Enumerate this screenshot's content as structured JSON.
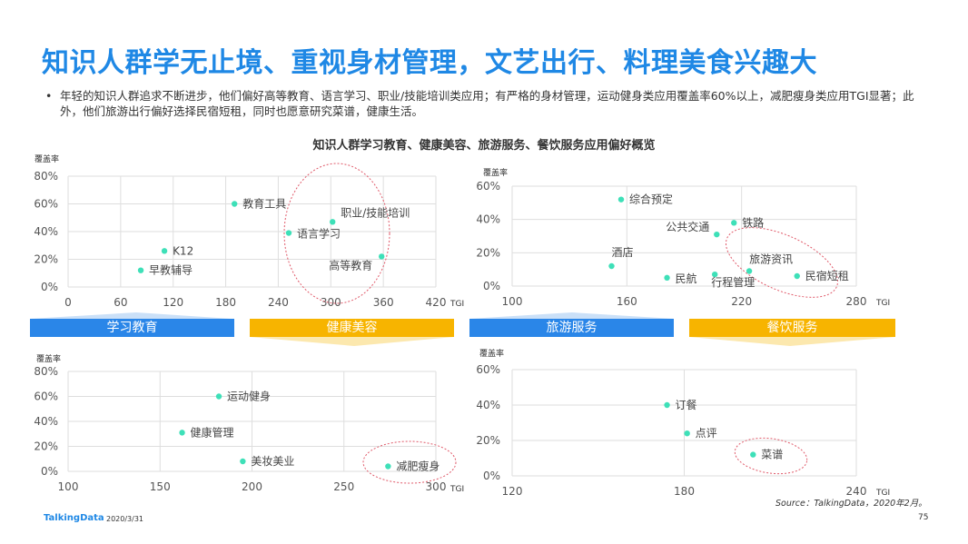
{
  "header": {
    "title": "知识人群学无止境、重视身材管理，文艺出行、料理美食兴趣大",
    "bullet_symbol": "•",
    "bullet": "年轻的知识人群追求不断进步，他们偏好高等教育、语言学习、职业/技能培训类应用；有严格的身材管理，运动健身类应用覆盖率60%以上，减肥瘦身类应用TGI显著；此外，他们旅游出行偏好选择民宿短租，同时也愿意研究菜谱，健康生活。"
  },
  "chart_title": "知识人群学习教育、健康美容、旅游服务、餐饮服务应用偏好概览",
  "bands": [
    "学习教育",
    "健康美容",
    "旅游服务",
    "餐饮服务"
  ],
  "colors": {
    "point": "#3ee0b8",
    "grid": "#dedede",
    "ellipse": "#e05a6a",
    "blue_band": "#2a86e8",
    "orange_band": "#f7b400"
  },
  "chart_data": [
    {
      "type": "scatter",
      "ylabel": "覆盖率",
      "xlabel": "TGI",
      "xlim": [
        0,
        420
      ],
      "ylim": [
        0,
        80
      ],
      "x_ticks": [
        0,
        60,
        120,
        180,
        240,
        300,
        360,
        420
      ],
      "y_ticks": [
        0,
        20,
        40,
        60,
        80
      ],
      "y_tick_labels": [
        "0%",
        "20%",
        "40%",
        "60%",
        "80%"
      ],
      "points": [
        {
          "label": "教育工具",
          "x": 190,
          "y": 60
        },
        {
          "label": "职业/技能培训",
          "x": 302,
          "y": 47
        },
        {
          "label": "语言学习",
          "x": 252,
          "y": 39
        },
        {
          "label": "K12",
          "x": 110,
          "y": 26
        },
        {
          "label": "高等教育",
          "x": 358,
          "y": 22
        },
        {
          "label": "早教辅导",
          "x": 83,
          "y": 12
        }
      ]
    },
    {
      "type": "scatter",
      "ylabel": "覆盖率",
      "xlabel": "TGI",
      "xlim": [
        100,
        280
      ],
      "ylim": [
        0,
        60
      ],
      "x_ticks": [
        100,
        160,
        220,
        280
      ],
      "y_ticks": [
        0,
        20,
        40,
        60
      ],
      "y_tick_labels": [
        "0%",
        "20%",
        "40%",
        "60%"
      ],
      "points": [
        {
          "label": "综合预定",
          "x": 157,
          "y": 52
        },
        {
          "label": "铁路",
          "x": 216,
          "y": 38
        },
        {
          "label": "公共交通",
          "x": 207,
          "y": 31
        },
        {
          "label": "酒店",
          "x": 152,
          "y": 12
        },
        {
          "label": "旅游资讯",
          "x": 224,
          "y": 9
        },
        {
          "label": "民航",
          "x": 181,
          "y": 5
        },
        {
          "label": "行程管理",
          "x": 206,
          "y": 7
        },
        {
          "label": "民宿短租",
          "x": 249,
          "y": 6
        }
      ]
    },
    {
      "type": "scatter",
      "ylabel": "覆盖率",
      "xlabel": "TGI",
      "xlim": [
        100,
        300
      ],
      "ylim": [
        0,
        80
      ],
      "x_ticks": [
        100,
        150,
        200,
        250,
        300
      ],
      "y_ticks": [
        0,
        20,
        40,
        60,
        80
      ],
      "y_tick_labels": [
        "0%",
        "20%",
        "40%",
        "60%",
        "80%"
      ],
      "points": [
        {
          "label": "运动健身",
          "x": 182,
          "y": 60
        },
        {
          "label": "健康管理",
          "x": 162,
          "y": 31
        },
        {
          "label": "美妆美业",
          "x": 195,
          "y": 8
        },
        {
          "label": "减肥瘦身",
          "x": 274,
          "y": 4
        }
      ]
    },
    {
      "type": "scatter",
      "ylabel": "覆盖率",
      "xlabel": "TGI",
      "xlim": [
        120,
        240
      ],
      "ylim": [
        0,
        60
      ],
      "x_ticks": [
        120,
        180,
        240
      ],
      "y_ticks": [
        0,
        20,
        40,
        60
      ],
      "y_tick_labels": [
        "0%",
        "20%",
        "40%",
        "60%"
      ],
      "points": [
        {
          "label": "订餐",
          "x": 174,
          "y": 40
        },
        {
          "label": "点评",
          "x": 181,
          "y": 24
        },
        {
          "label": "菜谱",
          "x": 204,
          "y": 12
        }
      ]
    }
  ],
  "footer": {
    "logo": "TalkingData",
    "date": "2020/3/31",
    "source": "Source：TalkingData，2020年2月。",
    "page": "75"
  }
}
